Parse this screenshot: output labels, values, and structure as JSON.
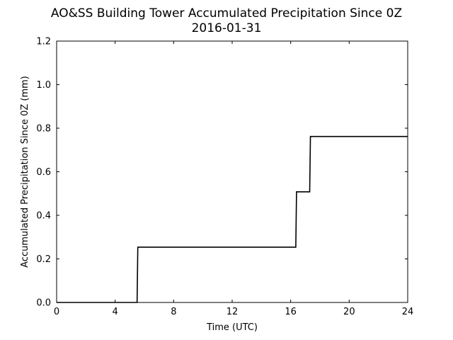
{
  "chart_data": {
    "type": "line",
    "title": "AO&SS Building Tower Accumulated Precipitation Since 0Z",
    "subtitle": "2016-01-31",
    "xlabel": "Time (UTC)",
    "ylabel": "Accumulated Precipitation Since 0Z (mm)",
    "xlim": [
      0,
      24
    ],
    "ylim": [
      0.0,
      1.2
    ],
    "x_ticks": [
      0,
      4,
      8,
      12,
      16,
      20,
      24
    ],
    "y_ticks": [
      0.0,
      0.2,
      0.4,
      0.6,
      0.8,
      1.0,
      1.2
    ],
    "x_tick_labels": [
      "0",
      "4",
      "8",
      "12",
      "16",
      "20",
      "24"
    ],
    "y_tick_labels": [
      "0.0",
      "0.2",
      "0.4",
      "0.6",
      "0.8",
      "1.0",
      "1.2"
    ],
    "grid": false,
    "series": [
      {
        "color": "#000000",
        "x": [
          0,
          5.5,
          5.55,
          16.35,
          16.4,
          17.3,
          17.35,
          24
        ],
        "y": [
          0.0,
          0.0,
          0.254,
          0.254,
          0.508,
          0.508,
          0.762,
          0.762
        ]
      }
    ]
  }
}
